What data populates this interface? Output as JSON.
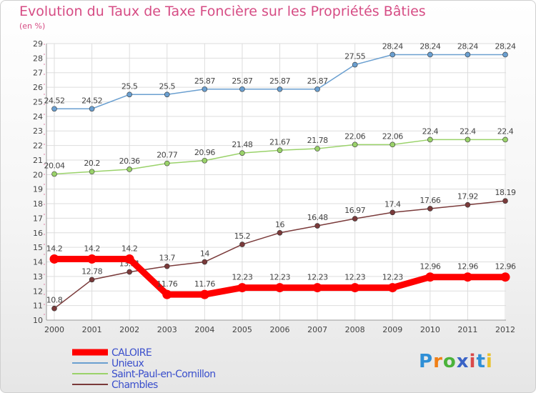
{
  "title": "Evolution du Taux de Taxe Foncière sur les Propriétés Bâties",
  "unit": "(en %)",
  "logo": "Proxiti",
  "chart_data": {
    "type": "line",
    "x": [
      "2000",
      "2001",
      "2002",
      "2003",
      "2004",
      "2005",
      "2006",
      "2007",
      "2008",
      "2009",
      "2010",
      "2011",
      "2012"
    ],
    "ylim": [
      10,
      29
    ],
    "yticks": [
      10,
      11,
      12,
      13,
      14,
      15,
      16,
      17,
      18,
      19,
      20,
      21,
      22,
      23,
      24,
      25,
      26,
      27,
      28,
      29
    ],
    "grid": true,
    "legend_position": "bottom-left",
    "series": [
      {
        "name": "CALOIRE",
        "color": "#ff0000",
        "values": [
          14.2,
          14.2,
          14.2,
          11.76,
          11.76,
          12.23,
          12.23,
          12.23,
          12.23,
          12.23,
          12.96,
          12.96,
          12.96
        ],
        "labels": [
          "14.2",
          "14.2",
          "14.2",
          "11.76",
          "11.76",
          "12.23",
          "12.23",
          "12.23",
          "12.23",
          "12.23",
          "12.96",
          "12.96",
          "12.96"
        ]
      },
      {
        "name": "Unieux",
        "color": "#6a9fd0",
        "values": [
          24.52,
          24.52,
          25.5,
          25.5,
          25.87,
          25.87,
          25.87,
          25.87,
          27.55,
          28.24,
          28.24,
          28.24,
          28.24
        ],
        "labels": [
          "24.52",
          "24.52",
          "25.5",
          "25.5",
          "25.87",
          "25.87",
          "25.87",
          "25.87",
          "27.55",
          "28.24",
          "28.24",
          "28.24",
          "28.24"
        ]
      },
      {
        "name": "Saint-Paul-en-Cornillon",
        "color": "#9ad26a",
        "values": [
          20.04,
          20.2,
          20.36,
          20.77,
          20.96,
          21.48,
          21.67,
          21.78,
          22.06,
          22.06,
          22.4,
          22.4,
          22.4
        ],
        "labels": [
          "20.04",
          "20.2",
          "20.36",
          "20.77",
          "20.96",
          "21.48",
          "21.67",
          "21.78",
          "22.06",
          "22.06",
          "22.4",
          "22.4",
          "22.4"
        ]
      },
      {
        "name": "Chambles",
        "color": "#7a3a3a",
        "values": [
          10.8,
          12.78,
          13.31,
          13.7,
          14,
          15.2,
          16,
          16.48,
          16.97,
          17.4,
          17.66,
          17.92,
          18.19
        ],
        "labels": [
          "10.8",
          "12.78",
          "13.31",
          "13.7",
          "14",
          "15.2",
          "16",
          "16.48",
          "16.97",
          "17.4",
          "17.66",
          "17.92",
          "18.19"
        ]
      }
    ]
  }
}
